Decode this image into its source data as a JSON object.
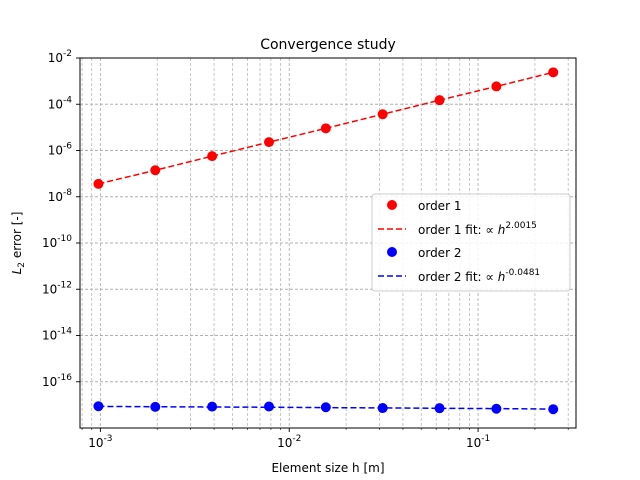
{
  "chart_data": {
    "type": "scatter",
    "title": "Convergence study",
    "xlabel": "Element size h [m]",
    "ylabel_base": "L",
    "ylabel_sub": "2",
    "ylabel_rest": " error [-]",
    "xscale": "log",
    "yscale": "log",
    "xlim": [
      0.00078,
      0.33
    ],
    "ylim": [
      1e-18,
      0.01
    ],
    "grid": "both (major and minor), dashed",
    "legend_position": "center-right",
    "x_ticks": [
      {
        "value": 0.001,
        "exp": "-3"
      },
      {
        "value": 0.01,
        "exp": "-2"
      },
      {
        "value": 0.1,
        "exp": "-1"
      }
    ],
    "y_ticks": [
      {
        "value": 1e-16,
        "exp": "-16"
      },
      {
        "value": 1e-14,
        "exp": "-14"
      },
      {
        "value": 1e-12,
        "exp": "-12"
      },
      {
        "value": 1e-10,
        "exp": "-10"
      },
      {
        "value": 1e-08,
        "exp": "-8"
      },
      {
        "value": 1e-06,
        "exp": "-6"
      },
      {
        "value": 0.0001,
        "exp": "-4"
      },
      {
        "value": 0.01,
        "exp": "-2"
      }
    ],
    "x": [
      0.0009765625,
      0.001953125,
      0.00390625,
      0.0078125,
      0.015625,
      0.03125,
      0.0625,
      0.125,
      0.25
    ],
    "series": [
      {
        "name": "order 1",
        "kind": "points",
        "color": "#ff0000",
        "values": [
          3.6e-08,
          1.4e-07,
          5.7e-07,
          2.3e-06,
          9.1e-06,
          3.7e-05,
          0.00015,
          0.00059,
          0.0024
        ]
      },
      {
        "name_prefix": "order 1 fit: ∝",
        "base": "h",
        "exponent": "2.0015",
        "kind": "fit",
        "color": "#ff0000",
        "values": [
          3.6e-08,
          1.4e-07,
          5.7e-07,
          2.3e-06,
          9.1e-06,
          3.7e-05,
          0.00015,
          0.00059,
          0.0024
        ]
      },
      {
        "name": "order 2",
        "kind": "points",
        "color": "#0000ff",
        "values": [
          8.7e-18,
          8.2e-18,
          8.4e-18,
          8.5e-18,
          7.9e-18,
          7.3e-18,
          7.2e-18,
          6.8e-18,
          6.5e-18
        ]
      },
      {
        "name_prefix": "order 2 fit: ∝",
        "base": "h",
        "exponent": "-0.0481",
        "kind": "fit",
        "color": "#0000ff",
        "values": [
          8.6e-18,
          8.3e-18,
          8.1e-18,
          7.9e-18,
          7.6e-18,
          7.4e-18,
          7.1e-18,
          6.9e-18,
          6.6e-18
        ]
      }
    ]
  }
}
